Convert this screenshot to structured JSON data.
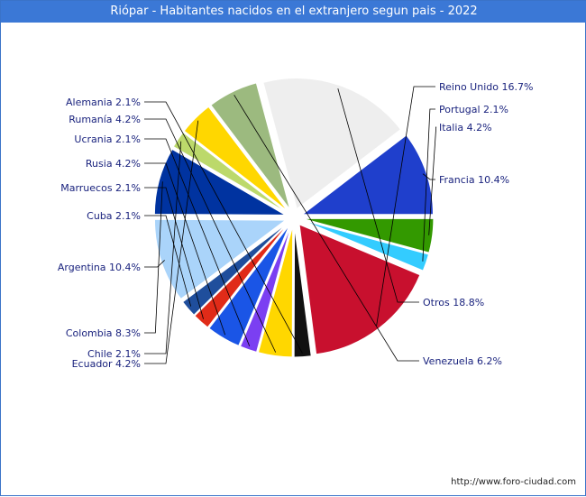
{
  "title": "Riópar - Habitantes nacidos en el extranjero segun pais - 2022",
  "credit": "http://www.foro-ciudad.com",
  "chart_data": {
    "type": "pie",
    "title": "Riópar - Habitantes nacidos en el extranjero segun pais - 2022",
    "slices": [
      {
        "name": "Francia",
        "value": 10.4,
        "label": "Francia 10.4%",
        "color": "#1f3fcc"
      },
      {
        "name": "Otros",
        "value": 18.8,
        "label": "Otros 18.8%",
        "color": "#eeeeee"
      },
      {
        "name": "Venezuela",
        "value": 6.2,
        "label": "Venezuela 6.2%",
        "color": "#9cba7f"
      },
      {
        "name": "Ecuador",
        "value": 4.2,
        "label": "Ecuador 4.2%",
        "color": "#ffd700"
      },
      {
        "name": "Chile",
        "value": 2.1,
        "label": "Chile 2.1%",
        "color": "#bcd96b"
      },
      {
        "name": "Colombia",
        "value": 8.3,
        "label": "Colombia 8.3%",
        "color": "#0033a0"
      },
      {
        "name": "Argentina",
        "value": 10.4,
        "label": "Argentina 10.4%",
        "color": "#aad4fa"
      },
      {
        "name": "Cuba",
        "value": 2.1,
        "label": "Cuba 2.1%",
        "color": "#1f4e9c"
      },
      {
        "name": "Marruecos",
        "value": 2.1,
        "label": "Marruecos 2.1%",
        "color": "#e02b18"
      },
      {
        "name": "Rusia",
        "value": 4.2,
        "label": "Rusia 4.2%",
        "color": "#1a55e6"
      },
      {
        "name": "Ucrania",
        "value": 2.1,
        "label": "Ucrania 2.1%",
        "color": "#7b3ff2"
      },
      {
        "name": "Rumanía",
        "value": 4.2,
        "label": "Rumanía 4.2%",
        "color": "#ffd700"
      },
      {
        "name": "Alemania",
        "value": 2.1,
        "label": "Alemania 2.1%",
        "color": "#111111"
      },
      {
        "name": "Reino Unido",
        "value": 16.7,
        "label": "Reino Unido 16.7%",
        "color": "#c8102e"
      },
      {
        "name": "Portugal",
        "value": 2.1,
        "label": "Portugal 2.1%",
        "color": "#33ccff"
      },
      {
        "name": "Italia",
        "value": 4.2,
        "label": "Italia 4.2%",
        "color": "#339900"
      }
    ]
  }
}
